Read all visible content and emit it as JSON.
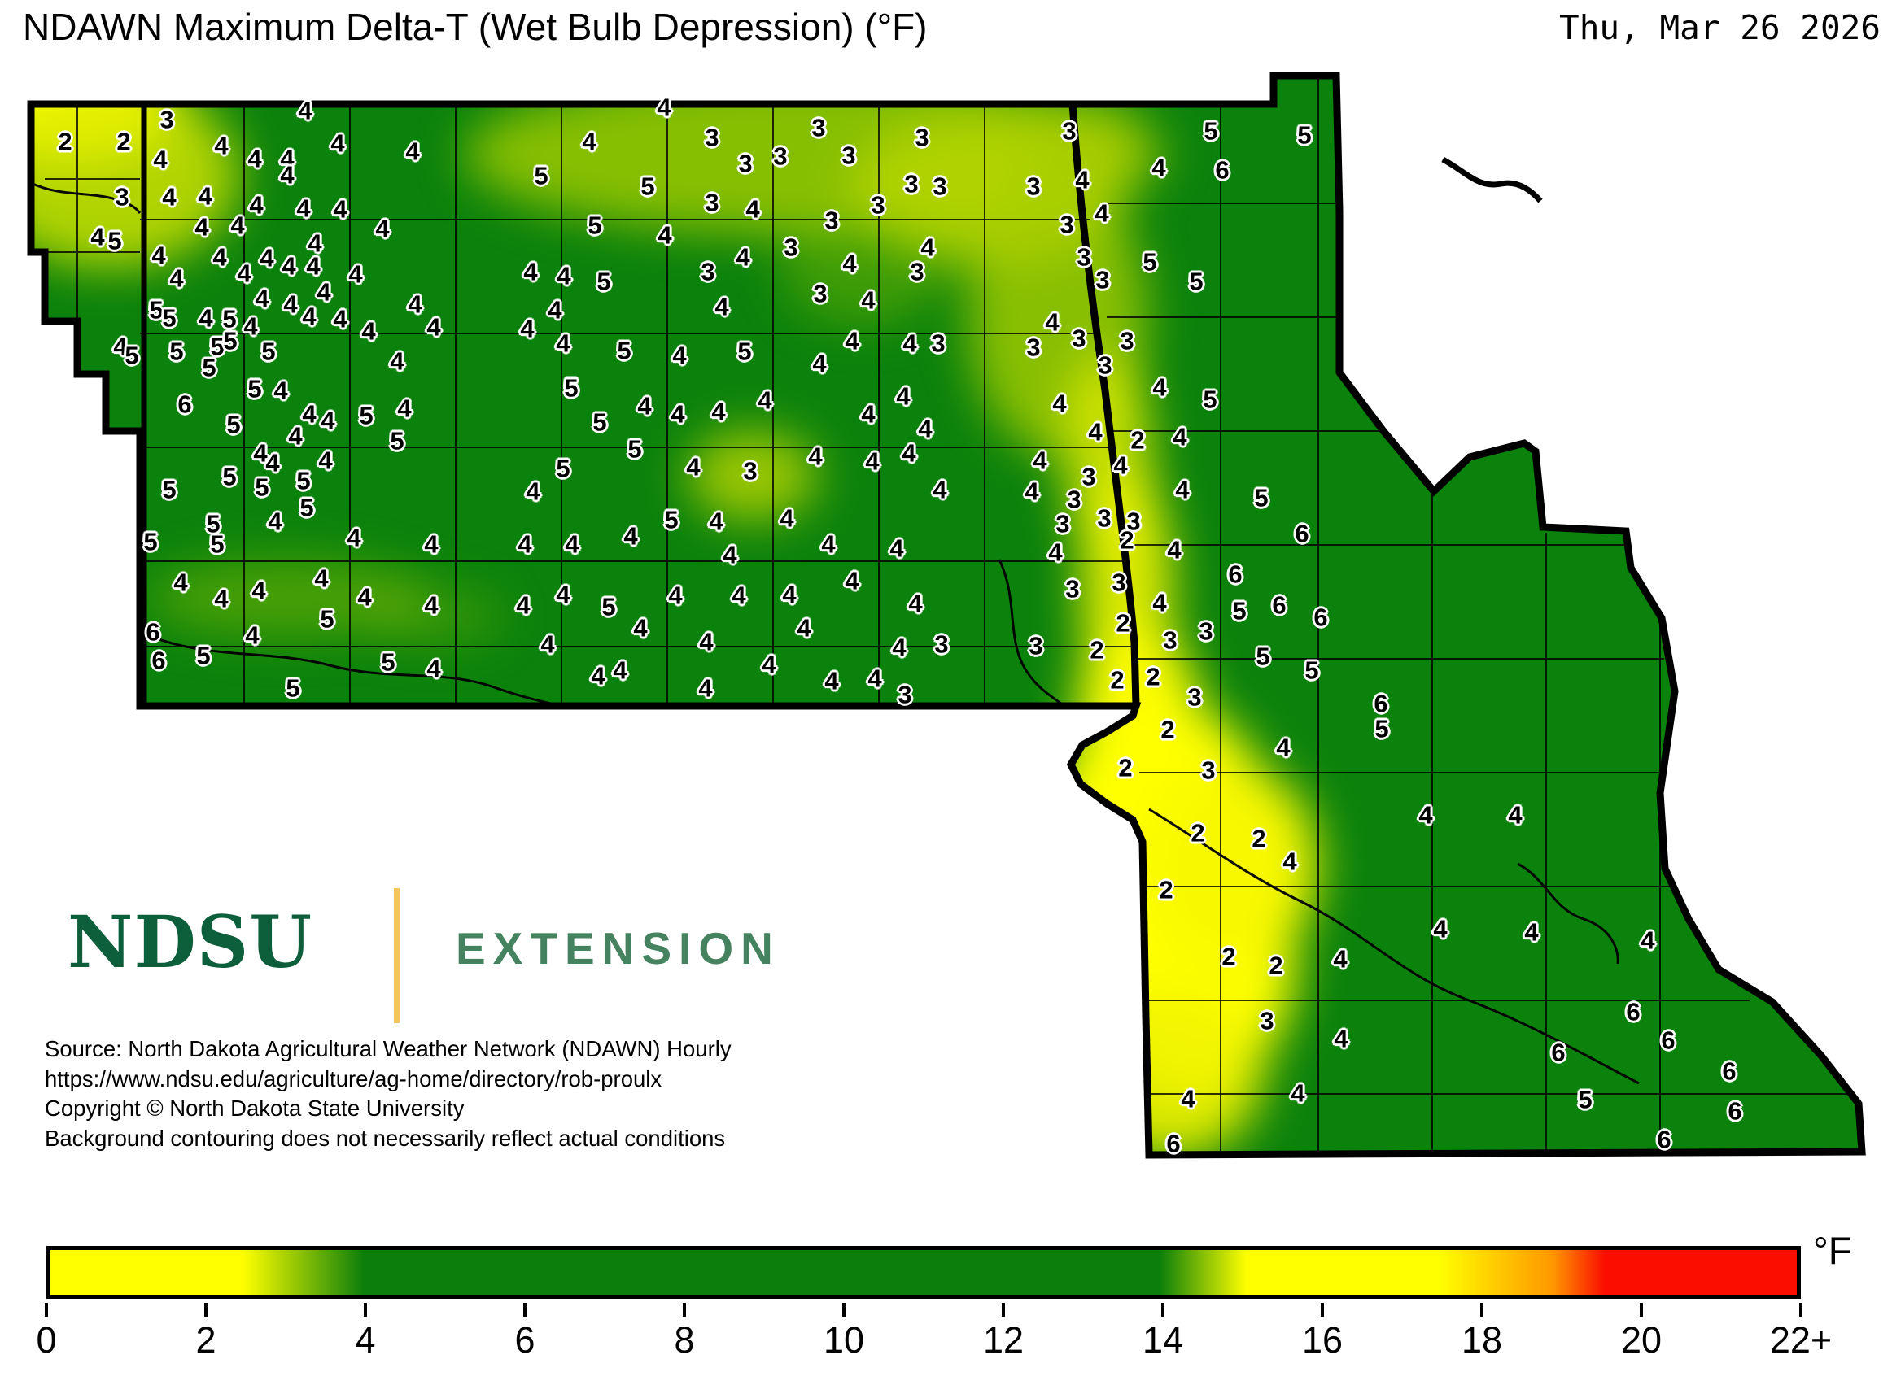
{
  "header": {
    "title": "NDAWN Maximum Delta-T (Wet Bulb Depression) (°F)",
    "date": "Thu, Mar 26 2026"
  },
  "logo": {
    "ndsu": "NDSU",
    "extension": "EXTENSION"
  },
  "source": {
    "lines": [
      "Source: North Dakota Agricultural Weather Network (NDAWN) Hourly",
      "https://www.ndsu.edu/agriculture/ag-home/directory/rob-proulx",
      "Copyright © North Dakota State University",
      "Background contouring does not necessarily reflect actual conditions"
    ]
  },
  "colorbar": {
    "unit_label": "°F",
    "min": 0,
    "max": 22,
    "tick_labels": [
      "0",
      "2",
      "4",
      "6",
      "8",
      "10",
      "12",
      "14",
      "16",
      "18",
      "20",
      "22+"
    ],
    "gradient": [
      [
        "#ffff00",
        0
      ],
      [
        "#ffff00",
        11
      ],
      [
        "#0b7e0b",
        18
      ],
      [
        "#0b7e0b",
        63.5
      ],
      [
        "#ffff00",
        68.5
      ],
      [
        "#ffff00",
        79.5
      ],
      [
        "#ff9800",
        86
      ],
      [
        "#fb0d00",
        89
      ],
      [
        "#fb0d00",
        100
      ]
    ]
  },
  "map": {
    "units": "°F",
    "value_range_shown": [
      2,
      6
    ],
    "stations": [
      [
        80,
        175,
        2
      ],
      [
        152,
        175,
        2
      ],
      [
        205,
        148,
        3
      ],
      [
        150,
        243,
        3
      ],
      [
        120,
        292,
        4
      ],
      [
        141,
        297,
        5
      ],
      [
        375,
        137,
        4
      ],
      [
        272,
        180,
        4
      ],
      [
        197,
        197,
        4
      ],
      [
        313,
        196,
        4
      ],
      [
        353,
        196,
        4
      ],
      [
        353,
        216,
        4
      ],
      [
        415,
        177,
        4
      ],
      [
        507,
        187,
        4
      ],
      [
        208,
        243,
        4
      ],
      [
        252,
        242,
        4
      ],
      [
        315,
        253,
        4
      ],
      [
        373,
        257,
        4
      ],
      [
        418,
        258,
        4
      ],
      [
        248,
        280,
        4
      ],
      [
        292,
        278,
        4
      ],
      [
        470,
        282,
        4
      ],
      [
        195,
        315,
        4
      ],
      [
        270,
        317,
        4
      ],
      [
        328,
        318,
        4
      ],
      [
        355,
        328,
        4
      ],
      [
        387,
        300,
        4
      ],
      [
        385,
        328,
        4
      ],
      [
        437,
        338,
        4
      ],
      [
        217,
        343,
        4
      ],
      [
        300,
        337,
        4
      ],
      [
        398,
        360,
        4
      ],
      [
        192,
        382,
        5
      ],
      [
        208,
        392,
        5
      ],
      [
        322,
        368,
        4
      ],
      [
        357,
        375,
        4
      ],
      [
        253,
        392,
        4
      ],
      [
        282,
        393,
        5
      ],
      [
        308,
        402,
        4
      ],
      [
        380,
        390,
        4
      ],
      [
        418,
        393,
        4
      ],
      [
        453,
        408,
        4
      ],
      [
        510,
        375,
        4
      ],
      [
        533,
        403,
        4
      ],
      [
        148,
        427,
        4
      ],
      [
        162,
        438,
        5
      ],
      [
        217,
        433,
        5
      ],
      [
        267,
        427,
        5
      ],
      [
        283,
        420,
        5
      ],
      [
        257,
        453,
        5
      ],
      [
        330,
        433,
        5
      ],
      [
        488,
        445,
        4
      ],
      [
        313,
        479,
        5
      ],
      [
        345,
        481,
        4
      ],
      [
        816,
        133,
        4
      ],
      [
        724,
        175,
        4
      ],
      [
        665,
        217,
        5
      ],
      [
        796,
        230,
        5
      ],
      [
        875,
        170,
        3
      ],
      [
        916,
        202,
        3
      ],
      [
        959,
        193,
        3
      ],
      [
        1006,
        158,
        3
      ],
      [
        1043,
        192,
        3
      ],
      [
        1133,
        170,
        3
      ],
      [
        1120,
        227,
        3
      ],
      [
        1155,
        230,
        3
      ],
      [
        875,
        250,
        3
      ],
      [
        925,
        258,
        4
      ],
      [
        1079,
        253,
        3
      ],
      [
        1022,
        272,
        3
      ],
      [
        731,
        278,
        5
      ],
      [
        817,
        290,
        4
      ],
      [
        972,
        305,
        3
      ],
      [
        913,
        317,
        4
      ],
      [
        1140,
        305,
        4
      ],
      [
        1044,
        325,
        4
      ],
      [
        1127,
        335,
        3
      ],
      [
        652,
        335,
        4
      ],
      [
        693,
        340,
        4
      ],
      [
        742,
        347,
        5
      ],
      [
        870,
        335,
        3
      ],
      [
        1008,
        362,
        3
      ],
      [
        1067,
        370,
        4
      ],
      [
        682,
        382,
        4
      ],
      [
        887,
        378,
        4
      ],
      [
        648,
        405,
        4
      ],
      [
        692,
        423,
        4
      ],
      [
        767,
        432,
        5
      ],
      [
        835,
        438,
        4
      ],
      [
        915,
        433,
        5
      ],
      [
        1007,
        448,
        4
      ],
      [
        1047,
        420,
        4
      ],
      [
        1118,
        423,
        4
      ],
      [
        1153,
        423,
        3
      ],
      [
        702,
        477,
        5
      ],
      [
        1314,
        162,
        3
      ],
      [
        1488,
        162,
        5
      ],
      [
        1603,
        167,
        5
      ],
      [
        1424,
        207,
        4
      ],
      [
        1502,
        210,
        6
      ],
      [
        1330,
        222,
        4
      ],
      [
        1270,
        230,
        3
      ],
      [
        1354,
        263,
        4
      ],
      [
        1311,
        277,
        3
      ],
      [
        1332,
        317,
        3
      ],
      [
        1413,
        323,
        5
      ],
      [
        1355,
        345,
        3
      ],
      [
        1470,
        347,
        5
      ],
      [
        1293,
        397,
        4
      ],
      [
        1270,
        428,
        3
      ],
      [
        1326,
        417,
        3
      ],
      [
        1385,
        420,
        3
      ],
      [
        1358,
        450,
        3
      ],
      [
        227,
        498,
        6
      ],
      [
        287,
        523,
        5
      ],
      [
        380,
        510,
        4
      ],
      [
        403,
        518,
        4
      ],
      [
        363,
        537,
        4
      ],
      [
        450,
        512,
        5
      ],
      [
        497,
        503,
        4
      ],
      [
        488,
        543,
        5
      ],
      [
        320,
        558,
        4
      ],
      [
        335,
        570,
        4
      ],
      [
        400,
        567,
        4
      ],
      [
        282,
        587,
        5
      ],
      [
        322,
        600,
        5
      ],
      [
        373,
        592,
        5
      ],
      [
        208,
        603,
        5
      ],
      [
        377,
        625,
        5
      ],
      [
        338,
        642,
        4
      ],
      [
        262,
        645,
        5
      ],
      [
        267,
        670,
        5
      ],
      [
        185,
        667,
        5
      ],
      [
        435,
        662,
        4
      ],
      [
        530,
        670,
        4
      ],
      [
        222,
        717,
        4
      ],
      [
        272,
        737,
        4
      ],
      [
        318,
        727,
        4
      ],
      [
        395,
        712,
        4
      ],
      [
        448,
        735,
        4
      ],
      [
        530,
        745,
        4
      ],
      [
        402,
        762,
        5
      ],
      [
        188,
        778,
        6
      ],
      [
        310,
        782,
        4
      ],
      [
        195,
        813,
        6
      ],
      [
        250,
        807,
        5
      ],
      [
        477,
        815,
        5
      ],
      [
        533,
        823,
        4
      ],
      [
        360,
        847,
        5
      ],
      [
        702,
        478,
        5
      ],
      [
        792,
        500,
        4
      ],
      [
        833,
        510,
        4
      ],
      [
        883,
        507,
        4
      ],
      [
        940,
        493,
        4
      ],
      [
        737,
        520,
        5
      ],
      [
        1067,
        510,
        4
      ],
      [
        1110,
        488,
        4
      ],
      [
        1137,
        528,
        4
      ],
      [
        780,
        553,
        5
      ],
      [
        692,
        577,
        5
      ],
      [
        852,
        575,
        4
      ],
      [
        922,
        580,
        3
      ],
      [
        1002,
        562,
        4
      ],
      [
        1072,
        568,
        4
      ],
      [
        1117,
        558,
        4
      ],
      [
        655,
        605,
        4
      ],
      [
        1155,
        603,
        4
      ],
      [
        825,
        640,
        5
      ],
      [
        880,
        642,
        4
      ],
      [
        967,
        638,
        4
      ],
      [
        775,
        660,
        4
      ],
      [
        703,
        670,
        4
      ],
      [
        645,
        670,
        4
      ],
      [
        1018,
        670,
        4
      ],
      [
        1102,
        675,
        4
      ],
      [
        897,
        683,
        4
      ],
      [
        692,
        732,
        4
      ],
      [
        643,
        745,
        4
      ],
      [
        748,
        747,
        5
      ],
      [
        830,
        733,
        4
      ],
      [
        908,
        733,
        4
      ],
      [
        970,
        732,
        4
      ],
      [
        1047,
        715,
        4
      ],
      [
        1125,
        743,
        4
      ],
      [
        787,
        773,
        4
      ],
      [
        673,
        793,
        4
      ],
      [
        988,
        773,
        4
      ],
      [
        868,
        790,
        4
      ],
      [
        945,
        818,
        4
      ],
      [
        1105,
        797,
        4
      ],
      [
        1157,
        793,
        3
      ],
      [
        735,
        832,
        4
      ],
      [
        762,
        825,
        4
      ],
      [
        867,
        847,
        4
      ],
      [
        1022,
        838,
        4
      ],
      [
        1075,
        835,
        4
      ],
      [
        1112,
        855,
        3
      ],
      [
        1302,
        497,
        4
      ],
      [
        1425,
        477,
        4
      ],
      [
        1487,
        492,
        5
      ],
      [
        1346,
        532,
        4
      ],
      [
        1398,
        542,
        2
      ],
      [
        1450,
        538,
        4
      ],
      [
        1278,
        567,
        4
      ],
      [
        1377,
        573,
        4
      ],
      [
        1338,
        587,
        3
      ],
      [
        1268,
        605,
        4
      ],
      [
        1320,
        615,
        3
      ],
      [
        1453,
        603,
        4
      ],
      [
        1550,
        613,
        5
      ],
      [
        1306,
        645,
        3
      ],
      [
        1357,
        638,
        3
      ],
      [
        1393,
        642,
        3
      ],
      [
        1385,
        665,
        2
      ],
      [
        1600,
        657,
        6
      ],
      [
        1297,
        680,
        4
      ],
      [
        1443,
        677,
        4
      ],
      [
        1318,
        725,
        3
      ],
      [
        1375,
        717,
        3
      ],
      [
        1518,
        707,
        6
      ],
      [
        1425,
        742,
        4
      ],
      [
        1523,
        752,
        5
      ],
      [
        1572,
        745,
        6
      ],
      [
        1623,
        760,
        6
      ],
      [
        1380,
        767,
        2
      ],
      [
        1273,
        795,
        3
      ],
      [
        1348,
        800,
        2
      ],
      [
        1438,
        788,
        3
      ],
      [
        1482,
        777,
        3
      ],
      [
        1552,
        808,
        5
      ],
      [
        1373,
        837,
        2
      ],
      [
        1417,
        833,
        2
      ],
      [
        1612,
        825,
        5
      ],
      [
        1468,
        858,
        3
      ],
      [
        1697,
        866,
        6
      ],
      [
        1435,
        898,
        2
      ],
      [
        1698,
        897,
        5
      ],
      [
        1577,
        920,
        4
      ],
      [
        1485,
        948,
        3
      ],
      [
        1383,
        945,
        2
      ],
      [
        1472,
        1025,
        2
      ],
      [
        1547,
        1032,
        2
      ],
      [
        1585,
        1060,
        4
      ],
      [
        1752,
        1003,
        4
      ],
      [
        1433,
        1095,
        2
      ],
      [
        1647,
        1180,
        4
      ],
      [
        1510,
        1177,
        2
      ],
      [
        1568,
        1188,
        2
      ],
      [
        1770,
        1143,
        4
      ],
      [
        1557,
        1256,
        3
      ],
      [
        1648,
        1278,
        4
      ],
      [
        1460,
        1352,
        4
      ],
      [
        1595,
        1345,
        4
      ],
      [
        1442,
        1407,
        6
      ],
      [
        1862,
        1003,
        4
      ],
      [
        1882,
        1147,
        4
      ],
      [
        2025,
        1157,
        4
      ],
      [
        2007,
        1245,
        6
      ],
      [
        1915,
        1295,
        6
      ],
      [
        2050,
        1280,
        6
      ],
      [
        2125,
        1318,
        6
      ],
      [
        1948,
        1353,
        5
      ],
      [
        2132,
        1367,
        6
      ],
      [
        2045,
        1402,
        6
      ]
    ]
  }
}
